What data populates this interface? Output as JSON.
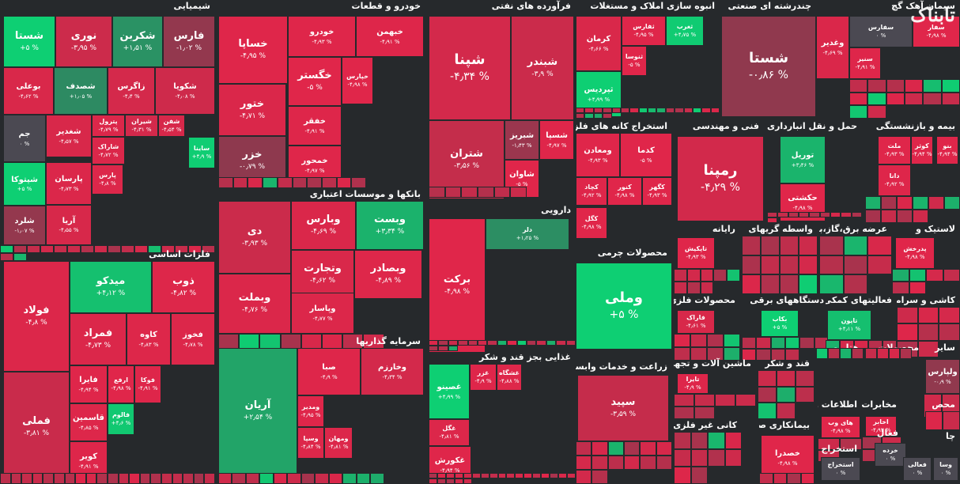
{
  "logo_text": "تابناک",
  "colors": {
    "background": "#26292c",
    "up": "#0ecf73",
    "down": "#e0264a",
    "flat": "#4b4952"
  },
  "chart_data": {
    "type": "treemap",
    "title": "",
    "sectors": [
      {
        "name": "شیمیایی",
        "tiles": [
          {
            "name": "شستا",
            "value": 5
          },
          {
            "name": "نوری",
            "value": -3.95
          },
          {
            "name": "شکربن",
            "value": 1.51
          },
          {
            "name": "فارس",
            "value": -1.02
          },
          {
            "name": "بوعلی",
            "value": -4.62
          },
          {
            "name": "شصدف",
            "value": 1.05
          },
          {
            "name": "زاگرس",
            "value": -4.4
          },
          {
            "name": "شکویا",
            "value": -4.08
          },
          {
            "name": "جم",
            "value": 0
          },
          {
            "name": "شغدیر",
            "value": -4.57
          },
          {
            "name": "پترول",
            "value": -4.79
          },
          {
            "name": "شیران",
            "value": -4.31
          },
          {
            "name": "شفن",
            "value": -4.54
          },
          {
            "name": "شاراک",
            "value": -4.72
          },
          {
            "name": "ساینا",
            "value": 4.9
          },
          {
            "name": "شپتوکا",
            "value": 5
          },
          {
            "name": "پارسان",
            "value": -4.73
          },
          {
            "name": "پارس",
            "value": -4.8
          },
          {
            "name": "شلرد",
            "value": -1.07
          },
          {
            "name": "آریا",
            "value": -4.55
          }
        ]
      },
      {
        "name": "خودرو و قطعات",
        "tiles": [
          {
            "name": "خساپا",
            "value": -4.95
          },
          {
            "name": "خودرو",
            "value": -4.93
          },
          {
            "name": "خبهمن",
            "value": -4.91
          },
          {
            "name": "خگستر",
            "value": -5
          },
          {
            "name": "خپارس",
            "value": -4.98
          },
          {
            "name": "ختور",
            "value": -4.71
          },
          {
            "name": "خفقر",
            "value": -4.91
          },
          {
            "name": "خزر",
            "value": -0.79
          },
          {
            "name": "خمحور",
            "value": -4.97
          }
        ]
      },
      {
        "name": "فرآورده های نفتی",
        "tiles": [
          {
            "name": "شپنا",
            "value": -4.34
          },
          {
            "name": "شبندر",
            "value": -3.9
          },
          {
            "name": "شتران",
            "value": -3.56
          },
          {
            "name": "شبریز",
            "value": -1.43
          },
          {
            "name": "شسپا",
            "value": -4.97
          },
          {
            "name": "شاوان",
            "value": -5
          }
        ]
      },
      {
        "name": "انبوه سازی املاک و مستغلات",
        "tiles": [
          {
            "name": "کرمان",
            "value": -4.66
          },
          {
            "name": "ثفارس",
            "value": -4.95
          },
          {
            "name": "ثغرب",
            "value": 4.75
          },
          {
            "name": "ثنوسا",
            "value": -5
          },
          {
            "name": "ثپردیس",
            "value": 4.99
          }
        ]
      },
      {
        "name": "چندرشته ای صنعتی",
        "tiles": [
          {
            "name": "شستا",
            "value": -0.86
          },
          {
            "name": "وغدیر",
            "value": -4.69
          }
        ]
      },
      {
        "name": "سیمان آهک گچ",
        "tiles": [
          {
            "name": "سفارس",
            "value": 0
          },
          {
            "name": "سفار",
            "value": -4.98
          },
          {
            "name": "سنیر",
            "value": -4.91
          }
        ]
      },
      {
        "name": "بانکها و موسسات اعتباری",
        "tiles": [
          {
            "name": "دی",
            "value": -3.93
          },
          {
            "name": "وبارس",
            "value": -4.69
          },
          {
            "name": "وبست",
            "value": 3.34
          },
          {
            "name": "وتجارت",
            "value": -4.62
          },
          {
            "name": "وبصادر",
            "value": -4.89
          },
          {
            "name": "وبملت",
            "value": -4.76
          },
          {
            "name": "وپاسار",
            "value": -4.77
          }
        ]
      },
      {
        "name": "فلزات اساسی",
        "tiles": [
          {
            "name": "فولاد",
            "value": -4.8
          },
          {
            "name": "میدکو",
            "value": 4.12
          },
          {
            "name": "ذوب",
            "value": -4.82
          },
          {
            "name": "فملی",
            "value": -3.81
          },
          {
            "name": "فمراد",
            "value": -4.73
          },
          {
            "name": "کاوه",
            "value": -4.83
          },
          {
            "name": "فخوز",
            "value": -4.78
          },
          {
            "name": "فایرا",
            "value": -4.94
          },
          {
            "name": "ارفع",
            "value": -4.98
          },
          {
            "name": "فوکا",
            "value": -4.91
          },
          {
            "name": "فالوم",
            "value": 4.6
          },
          {
            "name": "قاسمین",
            "value": -4.85
          },
          {
            "name": "کویر",
            "value": -4.91
          }
        ]
      },
      {
        "name": "سرمایه گذاریها",
        "tiles": [
          {
            "name": "آریان",
            "value": 2.54
          },
          {
            "name": "صبا",
            "value": -4.9
          },
          {
            "name": "وخارزم",
            "value": -4.34
          },
          {
            "name": "ومدیر",
            "value": -4.95
          },
          {
            "name": "وسپا",
            "value": -4.84
          },
          {
            "name": "ومهان",
            "value": -4.81
          }
        ]
      },
      {
        "name": "دارویی",
        "tiles": [
          {
            "name": "برکت",
            "value": -4.98
          },
          {
            "name": "دلر",
            "value": 1.25
          }
        ]
      },
      {
        "name": "غذایی بجز قند و شکر",
        "tiles": [
          {
            "name": "غصینو",
            "value": 4.99
          },
          {
            "name": "غزر",
            "value": -4.9
          },
          {
            "name": "غشگاه",
            "value": -4.88
          },
          {
            "name": "غگل",
            "value": -4.81
          },
          {
            "name": "غکورش",
            "value": -4.94
          }
        ]
      },
      {
        "name": "استخراج کانه های فلزی",
        "tiles": [
          {
            "name": "ومعادن",
            "value": -4.93
          },
          {
            "name": "کدما",
            "value": -5
          },
          {
            "name": "کچاد",
            "value": -4.92
          },
          {
            "name": "کنور",
            "value": -4.98
          },
          {
            "name": "کگهر",
            "value": -4.93
          },
          {
            "name": "کگل",
            "value": -4.98
          }
        ]
      },
      {
        "name": "فنی و مهندسی",
        "tiles": [
          {
            "name": "رمپنا",
            "value": -4.29
          }
        ]
      },
      {
        "name": "حمل و نقل انبارداری و",
        "tiles": [
          {
            "name": "توریل",
            "value": 3.46
          },
          {
            "name": "حکشتی",
            "value": -4.98
          }
        ]
      },
      {
        "name": "بیمه و بازنشستگی",
        "tiles": [
          {
            "name": "ملت",
            "value": -4.93
          },
          {
            "name": "کوثر",
            "value": -4.94
          },
          {
            "name": "بنو",
            "value": -4.94
          },
          {
            "name": "دانا",
            "value": -4.92
          }
        ]
      },
      {
        "name": "محصولات چرمی",
        "tiles": [
          {
            "name": "وملی",
            "value": 5
          }
        ]
      },
      {
        "name": "رایانه",
        "tiles": [
          {
            "name": "تاپکیش",
            "value": -4.93
          }
        ]
      },
      {
        "name": "واسطه گریهای",
        "tiles": []
      },
      {
        "name": "عرضه برق،گاز،بخار",
        "tiles": []
      },
      {
        "name": "لاستیک و",
        "tiles": [
          {
            "name": "پدرخش",
            "value": -4.98
          }
        ]
      },
      {
        "name": "محصولات فلزی",
        "tiles": [
          {
            "name": "فاراک",
            "value": -4.61
          }
        ]
      },
      {
        "name": "دستگاههای برقی",
        "tiles": [
          {
            "name": "بکاب",
            "value": 5
          }
        ]
      },
      {
        "name": "فعالیتهای کمکی به",
        "tiles": [
          {
            "name": "تاپون",
            "value": 4.11
          }
        ]
      },
      {
        "name": "کاشی و سرامیک",
        "tiles": []
      },
      {
        "name": "زراعت و خدمات وابسته",
        "tiles": [
          {
            "name": "سپید",
            "value": -3.59
          }
        ]
      },
      {
        "name": "ماشین آلات و تجهیزات",
        "tiles": [
          {
            "name": "تایرا",
            "value": -4.9
          }
        ]
      },
      {
        "name": "قند و شکر",
        "tiles": []
      },
      {
        "name": "هتل و",
        "tiles": []
      },
      {
        "name": "محصولات",
        "tiles": []
      },
      {
        "name": "ساير",
        "tiles": [
          {
            "name": "ولپارس",
            "value": -0.9
          }
        ]
      },
      {
        "name": "کانی غیر فلزی",
        "tiles": []
      },
      {
        "name": "بیمانکاری صنعتی",
        "tiles": [
          {
            "name": "خصدرا",
            "value": -4.98
          }
        ]
      },
      {
        "name": "اطلاعات و",
        "tiles": [
          {
            "name": "های وب",
            "value": -4.98
          }
        ]
      },
      {
        "name": "مخابرات",
        "tiles": [
          {
            "name": "اخابر",
            "value": -4.93
          }
        ]
      },
      {
        "name": "استخراج",
        "tiles": [
          {
            "name": "استخراج",
            "value": 0
          }
        ]
      },
      {
        "name": "محص",
        "tiles": []
      },
      {
        "name": "فعال",
        "tiles": []
      },
      {
        "name": "چا",
        "tiles": [
          {
            "name": "خرده",
            "value": 0
          },
          {
            "name": "فعالی",
            "value": 0
          },
          {
            "name": "وسا",
            "value": 0
          }
        ]
      }
    ]
  }
}
